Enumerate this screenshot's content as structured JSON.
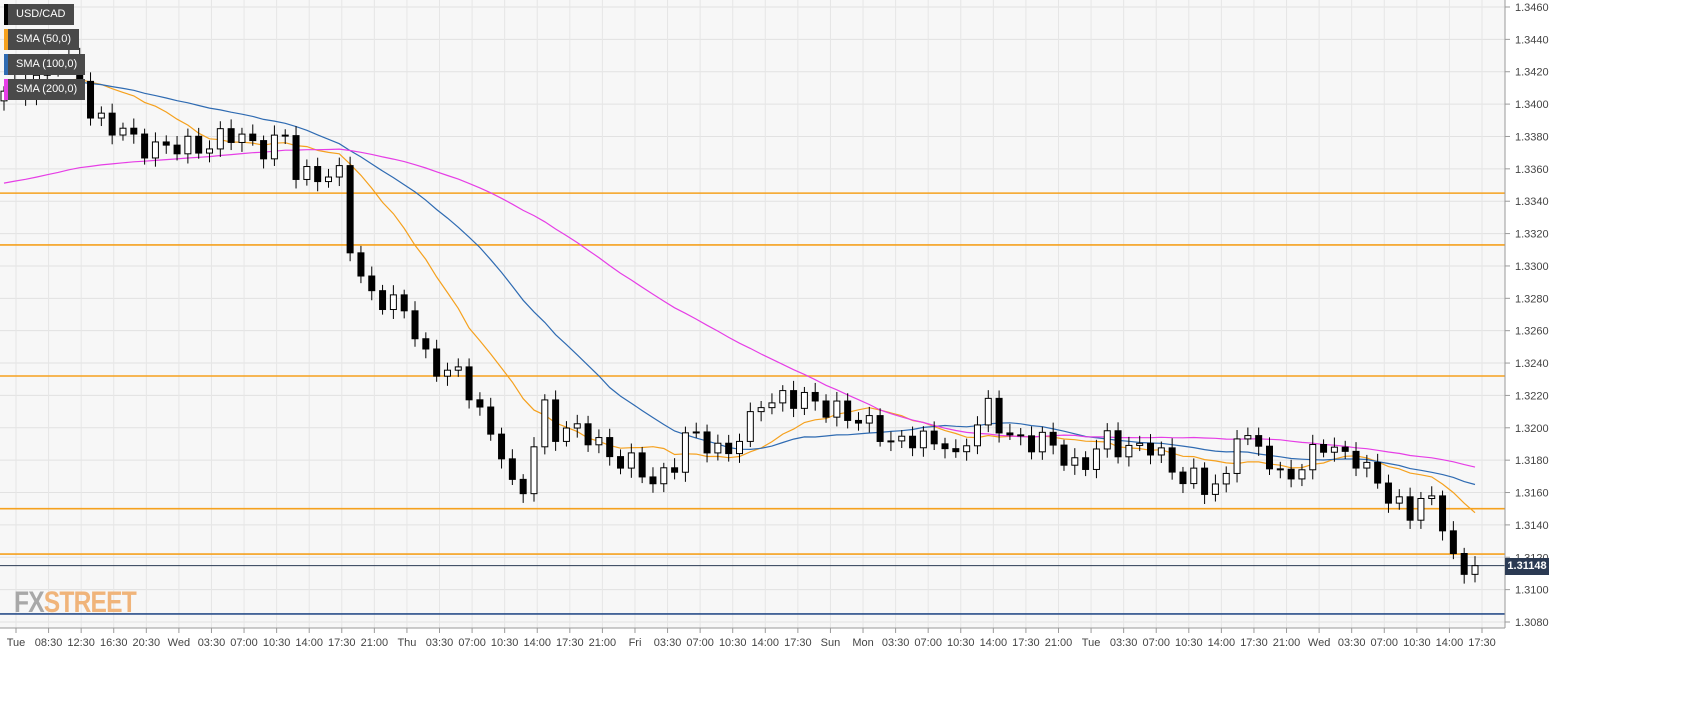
{
  "chart_data": {
    "type": "candlestick",
    "symbol": "USD/CAD",
    "ylim": [
      1.308,
      1.346
    ],
    "y_ticks": [
      "1.3460",
      "1.3440",
      "1.3420",
      "1.3400",
      "1.3380",
      "1.3360",
      "1.3340",
      "1.3320",
      "1.3300",
      "1.3280",
      "1.3260",
      "1.3240",
      "1.3220",
      "1.3200",
      "1.3180",
      "1.3160",
      "1.3140",
      "1.3120",
      "1.3100",
      "1.3080"
    ],
    "x_ticks": [
      "Tue",
      "08:30",
      "12:30",
      "16:30",
      "20:30",
      "Wed",
      "03:30",
      "07:00",
      "10:30",
      "14:00",
      "17:30",
      "21:00",
      "Thu",
      "03:30",
      "07:00",
      "10:30",
      "14:00",
      "17:30",
      "21:00",
      "Fri",
      "03:30",
      "07:00",
      "10:30",
      "14:00",
      "17:30",
      "Sun",
      "Mon",
      "03:30",
      "07:00",
      "10:30",
      "14:00",
      "17:30",
      "21:00",
      "Tue",
      "03:30",
      "07:00",
      "10:30",
      "14:00",
      "17:30",
      "21:00",
      "Wed",
      "03:30",
      "07:00",
      "10:30",
      "14:00",
      "17:30"
    ],
    "legend": [
      {
        "label": "USD/CAD",
        "color": "#000000"
      },
      {
        "label": "SMA (50,0)",
        "color": "#f5a11e"
      },
      {
        "label": "SMA (100,0)",
        "color": "#2f6bb2"
      },
      {
        "label": "SMA (200,0)",
        "color": "#e63ee6"
      }
    ],
    "horizontal_levels": [
      1.3345,
      1.3313,
      1.3232,
      1.315,
      1.3122
    ],
    "support_line": 1.3085,
    "last_price": 1.31148,
    "last_price_label": "1.31148",
    "close_path": [
      [
        0,
        1.3404
      ],
      [
        3,
        1.3418
      ],
      [
        5,
        1.3425
      ],
      [
        7,
        1.3418
      ],
      [
        8,
        1.3398
      ],
      [
        9,
        1.339
      ],
      [
        10,
        1.3383
      ],
      [
        12,
        1.3378
      ],
      [
        14,
        1.3375
      ],
      [
        16,
        1.337
      ],
      [
        18,
        1.3376
      ],
      [
        20,
        1.3379
      ],
      [
        22,
        1.3377
      ],
      [
        24,
        1.3376
      ],
      [
        26,
        1.3378
      ],
      [
        27,
        1.3354
      ],
      [
        28,
        1.3356
      ],
      [
        29,
        1.336
      ],
      [
        30,
        1.3358
      ],
      [
        31,
        1.3355
      ],
      [
        32,
        1.331
      ],
      [
        33,
        1.329
      ],
      [
        35,
        1.3282
      ],
      [
        37,
        1.327
      ],
      [
        38,
        1.3256
      ],
      [
        39,
        1.3245
      ],
      [
        41,
        1.3236
      ],
      [
        42,
        1.323
      ],
      [
        44,
        1.321
      ],
      [
        46,
        1.3188
      ],
      [
        47,
        1.316
      ],
      [
        48,
        1.3158
      ],
      [
        49,
        1.319
      ],
      [
        50,
        1.3215
      ],
      [
        51,
        1.32
      ],
      [
        53,
        1.3195
      ],
      [
        55,
        1.3192
      ],
      [
        57,
        1.318
      ],
      [
        59,
        1.317
      ],
      [
        60,
        1.3168
      ],
      [
        62,
        1.318
      ],
      [
        63,
        1.3192
      ],
      [
        65,
        1.319
      ],
      [
        67,
        1.3188
      ],
      [
        69,
        1.32
      ],
      [
        70,
        1.3215
      ],
      [
        72,
        1.3222
      ],
      [
        73,
        1.3218
      ],
      [
        75,
        1.3212
      ],
      [
        77,
        1.3215
      ],
      [
        78,
        1.3208
      ],
      [
        80,
        1.3198
      ],
      [
        82,
        1.3195
      ],
      [
        84,
        1.3192
      ],
      [
        86,
        1.3188
      ],
      [
        87,
        1.3195
      ],
      [
        88,
        1.3183
      ],
      [
        90,
        1.32
      ],
      [
        91,
        1.321
      ],
      [
        93,
        1.3198
      ],
      [
        95,
        1.3188
      ],
      [
        97,
        1.319
      ],
      [
        98,
        1.3185
      ],
      [
        99,
        1.3178
      ],
      [
        100,
        1.3176
      ],
      [
        102,
        1.3192
      ],
      [
        104,
        1.319
      ],
      [
        106,
        1.3185
      ],
      [
        107,
        1.318
      ],
      [
        108,
        1.3176
      ],
      [
        110,
        1.317
      ],
      [
        111,
        1.316
      ],
      [
        112,
        1.3162
      ],
      [
        113,
        1.3168
      ],
      [
        114,
        1.3203
      ],
      [
        116,
        1.3185
      ],
      [
        117,
        1.3176
      ],
      [
        118,
        1.3168
      ],
      [
        120,
        1.318
      ],
      [
        122,
        1.3186
      ],
      [
        124,
        1.3184
      ],
      [
        125,
        1.3185
      ],
      [
        126,
        1.3175
      ],
      [
        127,
        1.3162
      ],
      [
        128,
        1.3155
      ],
      [
        130,
        1.315
      ],
      [
        131,
        1.316
      ],
      [
        132,
        1.315
      ],
      [
        133,
        1.3138
      ],
      [
        134,
        1.312
      ],
      [
        135,
        1.311
      ],
      [
        136,
        1.31148
      ]
    ]
  }
}
